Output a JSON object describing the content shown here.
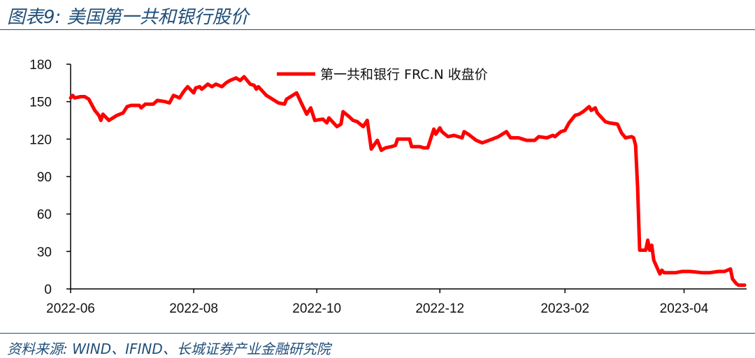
{
  "figure": {
    "title": "图表9:  美国第一共和银行股价",
    "source": "资料来源:  WIND、IFIND、长城证券产业金融研究院"
  },
  "chart_data": {
    "type": "line",
    "title": "",
    "xlabel": "",
    "ylabel": "",
    "ylim": [
      0,
      180
    ],
    "yticks": [
      0,
      30,
      60,
      90,
      120,
      150,
      180
    ],
    "xlim": [
      "2022-06-01",
      "2023-05-02"
    ],
    "xticks": [
      "2022-06",
      "2022-08",
      "2022-10",
      "2022-12",
      "2023-02",
      "2023-04"
    ],
    "grid": false,
    "legend_position": "top-center",
    "colors": {
      "line": "#ff0000",
      "axis": "#000000"
    },
    "series": [
      {
        "name": "第一共和银行 FRC.N 收盘价",
        "points": [
          [
            "2022-06-01",
            153
          ],
          [
            "2022-06-02",
            155
          ],
          [
            "2022-06-03",
            153
          ],
          [
            "2022-06-06",
            154
          ],
          [
            "2022-06-08",
            154
          ],
          [
            "2022-06-10",
            152
          ],
          [
            "2022-06-13",
            143
          ],
          [
            "2022-06-15",
            139
          ],
          [
            "2022-06-16",
            135
          ],
          [
            "2022-06-17",
            140
          ],
          [
            "2022-06-20",
            135
          ],
          [
            "2022-06-22",
            137
          ],
          [
            "2022-06-24",
            139
          ],
          [
            "2022-06-27",
            141
          ],
          [
            "2022-06-29",
            146
          ],
          [
            "2022-07-01",
            147
          ],
          [
            "2022-07-05",
            147
          ],
          [
            "2022-07-06",
            145
          ],
          [
            "2022-07-08",
            148
          ],
          [
            "2022-07-12",
            148
          ],
          [
            "2022-07-14",
            151
          ],
          [
            "2022-07-18",
            150
          ],
          [
            "2022-07-20",
            149
          ],
          [
            "2022-07-22",
            155
          ],
          [
            "2022-07-25",
            153
          ],
          [
            "2022-07-27",
            158
          ],
          [
            "2022-07-29",
            162
          ],
          [
            "2022-08-01",
            157
          ],
          [
            "2022-08-02",
            161
          ],
          [
            "2022-08-04",
            162
          ],
          [
            "2022-08-05",
            160
          ],
          [
            "2022-08-08",
            164
          ],
          [
            "2022-08-10",
            162
          ],
          [
            "2022-08-12",
            164
          ],
          [
            "2022-08-15",
            162
          ],
          [
            "2022-08-17",
            165
          ],
          [
            "2022-08-19",
            167
          ],
          [
            "2022-08-22",
            169
          ],
          [
            "2022-08-24",
            167
          ],
          [
            "2022-08-26",
            170
          ],
          [
            "2022-08-29",
            164
          ],
          [
            "2022-08-31",
            163
          ],
          [
            "2022-09-01",
            160
          ],
          [
            "2022-09-02",
            162
          ],
          [
            "2022-09-06",
            155
          ],
          [
            "2022-09-08",
            153
          ],
          [
            "2022-09-12",
            149
          ],
          [
            "2022-09-15",
            148
          ],
          [
            "2022-09-16",
            152
          ],
          [
            "2022-09-19",
            155
          ],
          [
            "2022-09-21",
            157
          ],
          [
            "2022-09-23",
            150
          ],
          [
            "2022-09-26",
            140
          ],
          [
            "2022-09-28",
            145
          ],
          [
            "2022-09-30",
            135
          ],
          [
            "2022-10-04",
            136
          ],
          [
            "2022-10-06",
            133
          ],
          [
            "2022-10-07",
            137
          ],
          [
            "2022-10-11",
            130
          ],
          [
            "2022-10-13",
            132
          ],
          [
            "2022-10-14",
            142
          ],
          [
            "2022-10-17",
            138
          ],
          [
            "2022-10-19",
            135
          ],
          [
            "2022-10-21",
            134
          ],
          [
            "2022-10-24",
            130
          ],
          [
            "2022-10-26",
            135
          ],
          [
            "2022-10-28",
            112
          ],
          [
            "2022-10-31",
            119
          ],
          [
            "2022-11-02",
            111
          ],
          [
            "2022-11-04",
            113
          ],
          [
            "2022-11-07",
            114
          ],
          [
            "2022-11-09",
            115
          ],
          [
            "2022-11-10",
            120
          ],
          [
            "2022-11-14",
            120
          ],
          [
            "2022-11-16",
            120
          ],
          [
            "2022-11-17",
            114
          ],
          [
            "2022-11-21",
            114
          ],
          [
            "2022-11-23",
            113
          ],
          [
            "2022-11-25",
            113
          ],
          [
            "2022-11-28",
            128
          ],
          [
            "2022-11-29",
            124
          ],
          [
            "2022-12-01",
            129
          ],
          [
            "2022-12-02",
            126
          ],
          [
            "2022-12-05",
            122
          ],
          [
            "2022-12-08",
            123
          ],
          [
            "2022-12-12",
            121
          ],
          [
            "2022-12-13",
            126
          ],
          [
            "2022-12-15",
            124
          ],
          [
            "2022-12-19",
            119
          ],
          [
            "2022-12-22",
            117
          ],
          [
            "2022-12-27",
            120
          ],
          [
            "2022-12-30",
            122
          ],
          [
            "2023-01-03",
            126
          ],
          [
            "2023-01-05",
            121
          ],
          [
            "2023-01-09",
            121
          ],
          [
            "2023-01-11",
            120
          ],
          [
            "2023-01-13",
            119
          ],
          [
            "2023-01-17",
            119
          ],
          [
            "2023-01-19",
            122
          ],
          [
            "2023-01-23",
            121
          ],
          [
            "2023-01-26",
            123
          ],
          [
            "2023-01-27",
            122
          ],
          [
            "2023-01-30",
            126
          ],
          [
            "2023-02-01",
            127
          ],
          [
            "2023-02-03",
            133
          ],
          [
            "2023-02-06",
            139
          ],
          [
            "2023-02-08",
            140
          ],
          [
            "2023-02-10",
            142
          ],
          [
            "2023-02-13",
            146
          ],
          [
            "2023-02-14",
            143
          ],
          [
            "2023-02-16",
            145
          ],
          [
            "2023-02-17",
            141
          ],
          [
            "2023-02-21",
            134
          ],
          [
            "2023-02-23",
            133
          ],
          [
            "2023-02-27",
            132
          ],
          [
            "2023-03-01",
            125
          ],
          [
            "2023-03-03",
            121
          ],
          [
            "2023-03-06",
            122
          ],
          [
            "2023-03-07",
            121
          ],
          [
            "2023-03-08",
            115
          ],
          [
            "2023-03-09",
            81
          ],
          [
            "2023-03-10",
            31
          ],
          [
            "2023-03-13",
            31
          ],
          [
            "2023-03-14",
            39
          ],
          [
            "2023-03-15",
            31
          ],
          [
            "2023-03-16",
            35
          ],
          [
            "2023-03-17",
            23
          ],
          [
            "2023-03-20",
            12
          ],
          [
            "2023-03-21",
            15
          ],
          [
            "2023-03-22",
            13
          ],
          [
            "2023-03-24",
            13
          ],
          [
            "2023-03-28",
            13
          ],
          [
            "2023-03-31",
            14
          ],
          [
            "2023-04-04",
            14
          ],
          [
            "2023-04-10",
            13
          ],
          [
            "2023-04-14",
            13
          ],
          [
            "2023-04-18",
            14
          ],
          [
            "2023-04-21",
            14
          ],
          [
            "2023-04-24",
            16
          ],
          [
            "2023-04-25",
            8
          ],
          [
            "2023-04-26",
            6
          ],
          [
            "2023-04-27",
            4
          ],
          [
            "2023-04-28",
            3
          ],
          [
            "2023-05-01",
            3
          ]
        ]
      }
    ]
  }
}
